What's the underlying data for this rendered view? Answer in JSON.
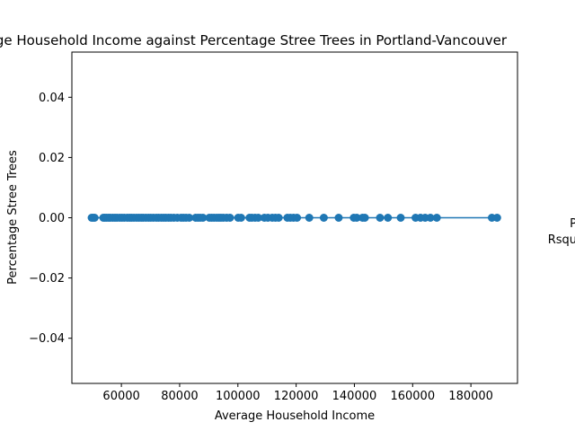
{
  "chart_data": {
    "type": "scatter",
    "title": "Average Household Income against Percentage Stree Trees in Portland-Vancouver",
    "xlabel": "Average Household Income",
    "ylabel": "Percentage Stree Trees",
    "xlim": [
      43000,
      196000
    ],
    "ylim": [
      -0.055,
      0.055
    ],
    "x_ticks": [
      60000,
      80000,
      100000,
      120000,
      140000,
      160000,
      180000
    ],
    "x_tick_labels": [
      "60000",
      "80000",
      "100000",
      "120000",
      "140000",
      "160000",
      "180000"
    ],
    "y_ticks": [
      0.04,
      0.02,
      0.0,
      -0.02,
      -0.04
    ],
    "y_tick_labels": [
      "0.04",
      "0.02",
      "0.00",
      "−0.02",
      "−0.04"
    ],
    "color": "#1f77b4",
    "points": {
      "x": [
        49800,
        50300,
        50800,
        53800,
        54300,
        54900,
        55600,
        56200,
        57000,
        57800,
        58500,
        59400,
        60200,
        61000,
        62000,
        62800,
        63500,
        64300,
        65200,
        66000,
        66800,
        67500,
        68400,
        69300,
        70100,
        71000,
        72000,
        72800,
        73700,
        74500,
        75300,
        76200,
        77000,
        78000,
        79200,
        80500,
        81300,
        82200,
        83300,
        85500,
        86300,
        87100,
        88000,
        90200,
        91000,
        91800,
        92700,
        93500,
        94200,
        95000,
        96100,
        97300,
        100100,
        101100,
        104000,
        104800,
        105900,
        107000,
        109100,
        110300,
        111800,
        112900,
        114000,
        117000,
        118000,
        119100,
        120300,
        124500,
        129500,
        134600,
        139800,
        140800,
        142800,
        143600,
        148800,
        151500,
        155900,
        161000,
        162700,
        164300,
        166100,
        168300,
        187200,
        189000
      ],
      "y": [
        0,
        0,
        0,
        0,
        0,
        0,
        0,
        0,
        0,
        0,
        0,
        0,
        0,
        0,
        0,
        0,
        0,
        0,
        0,
        0,
        0,
        0,
        0,
        0,
        0,
        0,
        0,
        0,
        0,
        0,
        0,
        0,
        0,
        0,
        0,
        0,
        0,
        0,
        0,
        0,
        0,
        0,
        0,
        0,
        0,
        0,
        0,
        0,
        0,
        0,
        0,
        0,
        0,
        0,
        0,
        0,
        0,
        0,
        0,
        0,
        0,
        0,
        0,
        0,
        0,
        0,
        0,
        0,
        0,
        0,
        0,
        0,
        0,
        0,
        0,
        0,
        0,
        0,
        0,
        0,
        0,
        0,
        0,
        0
      ]
    },
    "fit_line": {
      "x": [
        49800,
        189000
      ],
      "y": [
        0,
        0
      ]
    },
    "side_note": [
      "P",
      "Rsqu"
    ]
  }
}
